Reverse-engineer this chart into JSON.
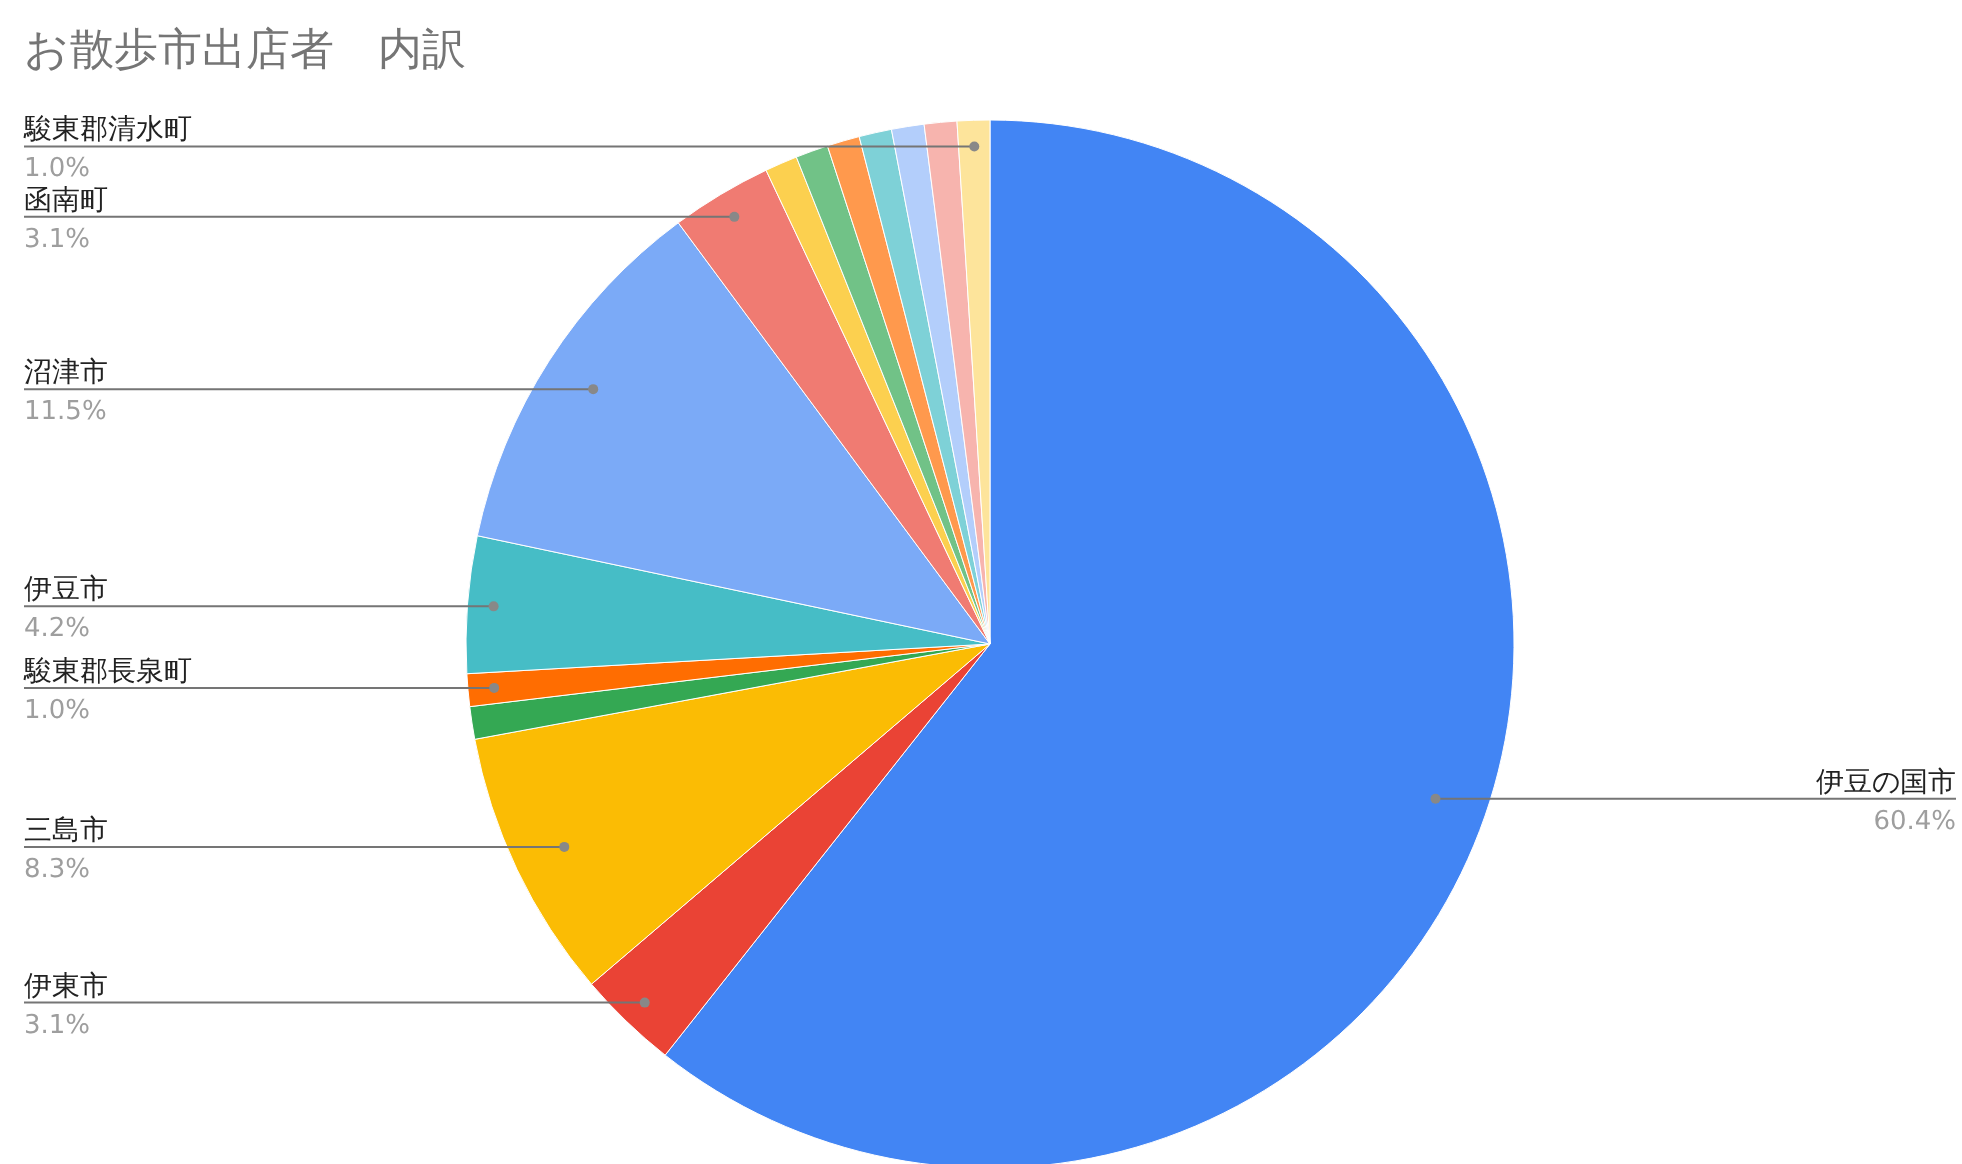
{
  "chart_data": {
    "type": "pie",
    "title": "お散歩市出店者　内訳",
    "categories": [
      "伊豆の国市",
      "伊東市",
      "三島市",
      null,
      "駿東郡長泉町",
      "伊豆市",
      "沼津市",
      "函南町",
      null,
      null,
      null,
      null,
      null,
      null,
      "駿東郡清水町"
    ],
    "values": [
      60.4,
      3.1,
      8.3,
      1.0,
      1.0,
      4.2,
      11.5,
      3.1,
      1.0,
      1.0,
      1.0,
      1.0,
      1.0,
      1.0,
      1.0
    ],
    "value_labels": [
      "60.4%",
      "3.1%",
      "8.3%",
      null,
      "1.0%",
      "4.2%",
      "11.5%",
      "3.1%",
      null,
      null,
      null,
      null,
      null,
      null,
      "1.0%"
    ],
    "colors": [
      "#4285f4",
      "#ea4335",
      "#fbbc04",
      "#34a853",
      "#ff6d01",
      "#46bdc6",
      "#7baaf7",
      "#f07b72",
      "#fcd04f",
      "#71c287",
      "#ff994d",
      "#7ed1d7",
      "#b3cefb",
      "#f7b4ae",
      "#fde49b"
    ]
  }
}
